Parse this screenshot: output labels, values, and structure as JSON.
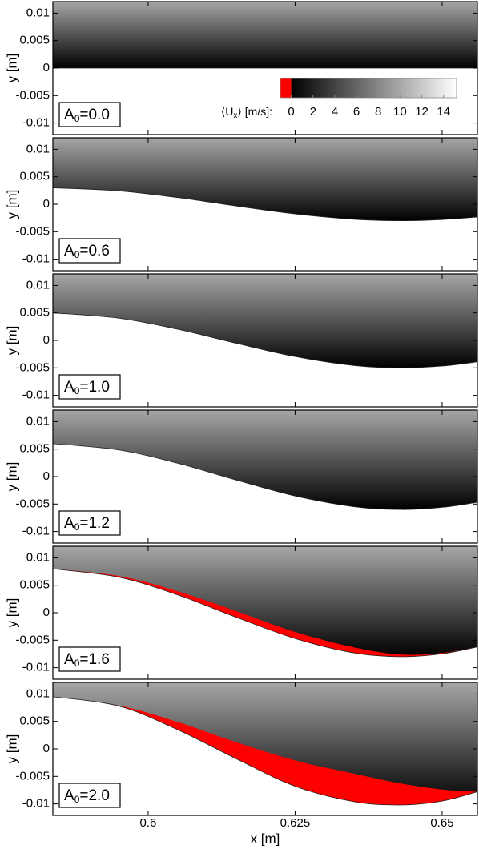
{
  "chart_data": [
    {
      "type": "contour",
      "panel_label": {
        "base": "A",
        "sub": "0",
        "rest": "=0.0"
      },
      "ylabel": "y [m]",
      "xlim": [
        0.5838,
        0.656
      ],
      "xticks": [
        0.6,
        0.625,
        0.65
      ],
      "ylim": [
        -0.0121,
        0.0121
      ],
      "yticks": [
        0.01,
        0.005,
        0,
        -0.005,
        -0.01
      ],
      "x": [
        0.5838,
        0.595,
        0.605,
        0.615,
        0.625,
        0.635,
        0.643,
        0.65,
        0.656
      ],
      "wall_y": [
        0,
        0,
        0,
        0,
        0,
        0,
        0,
        0,
        0
      ],
      "colorbar": {
        "label": {
          "prefix": "⟨U",
          "sub": "x",
          "suffix": "⟩ [m/s]:"
        },
        "clim": [
          -1,
          15.2
        ],
        "ticks": [
          0,
          2,
          4,
          6,
          8,
          10,
          12,
          14
        ],
        "negative_color": "#ff0000",
        "colormap": [
          "#000000",
          "#ffffff"
        ]
      }
    },
    {
      "type": "contour",
      "panel_label": {
        "base": "A",
        "sub": "0",
        "rest": "=0.6"
      },
      "ylabel": "y [m]",
      "xlim": [
        0.5838,
        0.656
      ],
      "xticks": [
        0.6,
        0.625,
        0.65
      ],
      "ylim": [
        -0.0121,
        0.0121
      ],
      "yticks": [
        0.01,
        0.005,
        0,
        -0.005,
        -0.01
      ],
      "x": [
        0.5838,
        0.595,
        0.605,
        0.615,
        0.625,
        0.635,
        0.643,
        0.65,
        0.656
      ],
      "wall_y": [
        0.003,
        0.00243,
        0.00122,
        -0.00032,
        -0.00176,
        -0.00274,
        -0.003,
        -0.0028,
        -0.00233
      ]
    },
    {
      "type": "contour",
      "panel_label": {
        "base": "A",
        "sub": "0",
        "rest": "=1.0"
      },
      "ylabel": "y [m]",
      "xlim": [
        0.5838,
        0.656
      ],
      "xticks": [
        0.6,
        0.625,
        0.65
      ],
      "ylim": [
        -0.0121,
        0.0121
      ],
      "yticks": [
        0.01,
        0.005,
        0,
        -0.005,
        -0.01
      ],
      "x": [
        0.5838,
        0.595,
        0.605,
        0.615,
        0.625,
        0.635,
        0.643,
        0.65,
        0.656
      ],
      "wall_y": [
        0.005,
        0.00405,
        0.00204,
        -0.00053,
        -0.00294,
        -0.00457,
        -0.005,
        -0.00467,
        -0.00389
      ]
    },
    {
      "type": "contour",
      "panel_label": {
        "base": "A",
        "sub": "0",
        "rest": "=1.2"
      },
      "ylabel": "y [m]",
      "xlim": [
        0.5838,
        0.656
      ],
      "xticks": [
        0.6,
        0.625,
        0.65
      ],
      "ylim": [
        -0.0121,
        0.0121
      ],
      "yticks": [
        0.01,
        0.005,
        0,
        -0.005,
        -0.01
      ],
      "x": [
        0.5838,
        0.595,
        0.605,
        0.615,
        0.625,
        0.635,
        0.643,
        0.65,
        0.656
      ],
      "wall_y": [
        0.006,
        0.00485,
        0.00244,
        -0.00063,
        -0.00353,
        -0.00548,
        -0.006,
        -0.0056,
        -0.00466
      ]
    },
    {
      "type": "contour",
      "panel_label": {
        "base": "A",
        "sub": "0",
        "rest": "=1.6"
      },
      "ylabel": "y [m]",
      "xlim": [
        0.5838,
        0.656
      ],
      "xticks": [
        0.6,
        0.625,
        0.65
      ],
      "ylim": [
        -0.0121,
        0.0121
      ],
      "yticks": [
        0.01,
        0.005,
        0,
        -0.005,
        -0.01
      ],
      "x": [
        0.5838,
        0.595,
        0.605,
        0.615,
        0.625,
        0.635,
        0.643,
        0.65,
        0.656
      ],
      "wall_y": [
        0.008,
        0.00647,
        0.00326,
        -0.00084,
        -0.0047,
        -0.00731,
        -0.008,
        -0.00747,
        -0.00622
      ],
      "reversed_flow_top": [
        0.008,
        0.0067,
        0.0039,
        0.0003,
        -0.0035,
        -0.0063,
        -0.0076,
        -0.0073,
        -0.0062
      ]
    },
    {
      "type": "contour",
      "panel_label": {
        "base": "A",
        "sub": "0",
        "rest": "=2.0"
      },
      "ylabel": "y [m]",
      "xlabel": "x [m]",
      "xlim": [
        0.5838,
        0.656
      ],
      "xticks": [
        0.6,
        0.625,
        0.65
      ],
      "ylim": [
        -0.0121,
        0.0121
      ],
      "yticks": [
        0.01,
        0.005,
        0,
        -0.005,
        -0.01
      ],
      "x": [
        0.5838,
        0.595,
        0.605,
        0.615,
        0.625,
        0.635,
        0.643,
        0.65,
        0.656
      ],
      "wall_y": [
        0.0095,
        0.0078,
        0.0035,
        -0.0018,
        -0.0068,
        -0.0096,
        -0.0102,
        -0.0095,
        -0.0078
      ],
      "reversed_flow_top": [
        0.0095,
        0.0079,
        0.0049,
        0.0012,
        -0.0021,
        -0.0045,
        -0.0063,
        -0.0074,
        -0.0078
      ]
    }
  ]
}
